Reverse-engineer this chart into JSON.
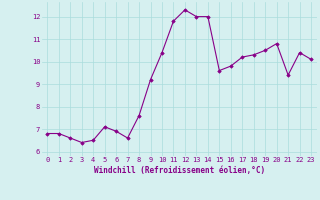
{
  "x": [
    0,
    1,
    2,
    3,
    4,
    5,
    6,
    7,
    8,
    9,
    10,
    11,
    12,
    13,
    14,
    15,
    16,
    17,
    18,
    19,
    20,
    21,
    22,
    23
  ],
  "y": [
    6.8,
    6.8,
    6.6,
    6.4,
    6.5,
    7.1,
    6.9,
    6.6,
    7.6,
    9.2,
    10.4,
    11.8,
    12.3,
    12.0,
    12.0,
    9.6,
    9.8,
    10.2,
    10.3,
    10.5,
    10.8,
    9.4,
    10.4,
    10.1
  ],
  "line_color": "#880088",
  "marker": "D",
  "marker_size": 1.8,
  "bg_color": "#d6f0f0",
  "grid_color": "#aadddd",
  "xlabel": "Windchill (Refroidissement éolien,°C)",
  "xlabel_color": "#880088",
  "xlabel_fontsize": 5.5,
  "tick_color": "#880088",
  "tick_fontsize": 5.0,
  "ylim": [
    5.8,
    12.65
  ],
  "yticks": [
    6,
    7,
    8,
    9,
    10,
    11,
    12
  ],
  "xticks": [
    0,
    1,
    2,
    3,
    4,
    5,
    6,
    7,
    8,
    9,
    10,
    11,
    12,
    13,
    14,
    15,
    16,
    17,
    18,
    19,
    20,
    21,
    22,
    23
  ],
  "linewidth": 0.8
}
